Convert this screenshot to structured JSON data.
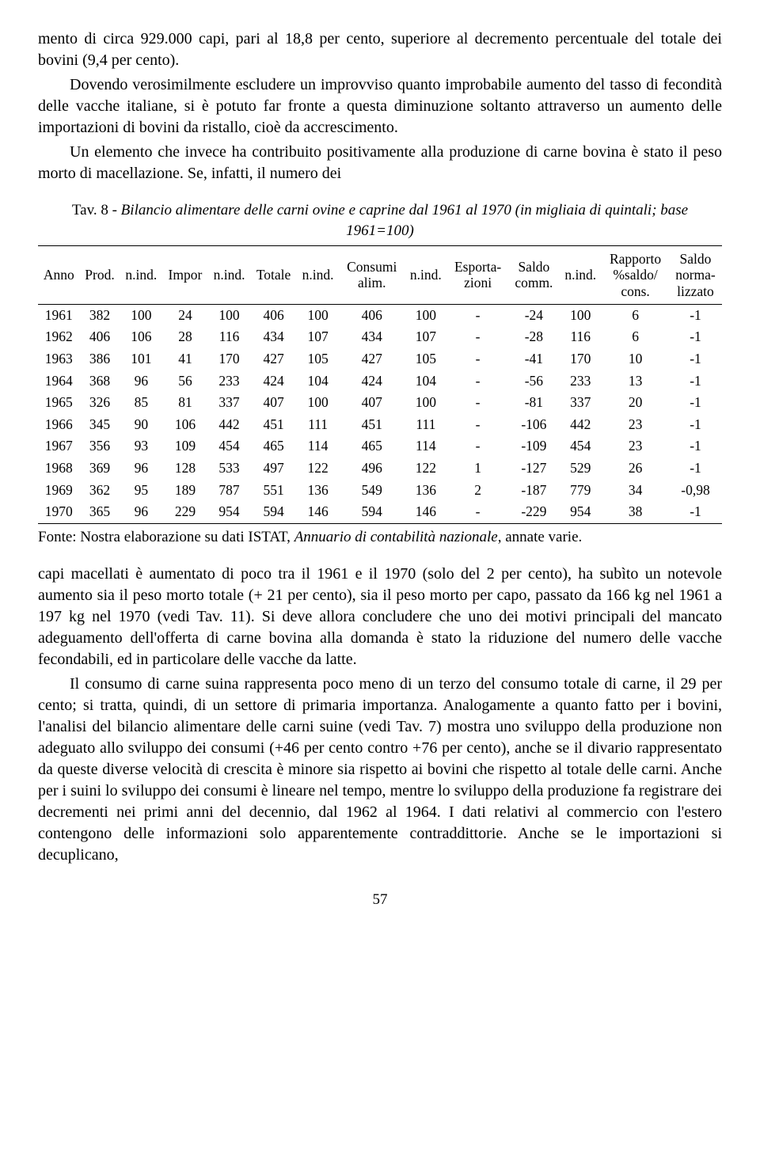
{
  "paragraphs": {
    "p1": "mento di circa 929.000 capi, pari al 18,8 per cento, superiore al decremento percentuale del totale dei bovini (9,4 per cento).",
    "p2": "Dovendo verosimilmente escludere un improvviso quanto improbabile aumento del tasso di fecondità delle vacche italiane, si è potuto far fronte a questa diminuzione soltanto attraverso un aumento delle importazioni di bovini da ristallo, cioè da accrescimento.",
    "p3": "Un elemento che invece ha contribuito positivamente alla produzione di carne bovina è stato il peso morto di macellazione. Se, infatti, il numero dei",
    "p4": "capi macellati è aumentato di poco tra il 1961 e il 1970 (solo del 2 per cento), ha subìto un notevole aumento sia il peso morto totale (+ 21 per cento), sia il peso morto per capo, passato da 166 kg nel 1961 a 197 kg nel 1970 (vedi Tav. 11). Si deve allora concludere che uno dei motivi principali del mancato adeguamento dell'offerta di carne bovina alla domanda è stato la riduzione del numero delle vacche fecondabili, ed in particolare delle vacche da latte.",
    "p5": "Il consumo di carne suina rappresenta poco meno di un terzo del consumo totale di carne, il 29 per cento; si tratta, quindi, di un settore di primaria importanza. Analogamente a quanto fatto per i bovini, l'analisi del bilancio alimentare delle carni suine (vedi Tav. 7) mostra uno sviluppo della produzione non adeguato allo sviluppo dei consumi (+46 per cento contro +76 per cento), anche se il divario rappresentato da queste diverse velocità di crescita è minore sia rispetto ai bovini che rispetto al totale delle carni. Anche per i suini lo sviluppo dei consumi è lineare nel tempo, mentre lo sviluppo della produzione fa registrare dei decrementi nei primi anni del decennio, dal 1962 al 1964. I dati relativi al commercio con l'estero contengono delle informazioni solo apparentemente contraddittorie. Anche se le importazioni si decuplicano,"
  },
  "table": {
    "caption_prefix": "Tav. 8",
    "caption_text": " - Bilancio alimentare delle carni ovine e caprine dal 1961 al 1970 (in migliaia di quintali; base 1961=100)",
    "columns": [
      "Anno",
      "Prod.",
      "n.ind.",
      "Impor",
      "n.ind.",
      "Totale",
      "n.ind.",
      "Consumi alim.",
      "n.ind.",
      "Esporta- zioni",
      "Saldo comm.",
      "n.ind.",
      "Rapporto %saldo/ cons.",
      "Saldo norma- lizzato"
    ],
    "rows": [
      [
        "1961",
        "382",
        "100",
        "24",
        "100",
        "406",
        "100",
        "406",
        "100",
        "-",
        "-24",
        "100",
        "6",
        "-1"
      ],
      [
        "1962",
        "406",
        "106",
        "28",
        "116",
        "434",
        "107",
        "434",
        "107",
        "-",
        "-28",
        "116",
        "6",
        "-1"
      ],
      [
        "1963",
        "386",
        "101",
        "41",
        "170",
        "427",
        "105",
        "427",
        "105",
        "-",
        "-41",
        "170",
        "10",
        "-1"
      ],
      [
        "1964",
        "368",
        "96",
        "56",
        "233",
        "424",
        "104",
        "424",
        "104",
        "-",
        "-56",
        "233",
        "13",
        "-1"
      ],
      [
        "1965",
        "326",
        "85",
        "81",
        "337",
        "407",
        "100",
        "407",
        "100",
        "-",
        "-81",
        "337",
        "20",
        "-1"
      ],
      [
        "1966",
        "345",
        "90",
        "106",
        "442",
        "451",
        "111",
        "451",
        "111",
        "-",
        "-106",
        "442",
        "23",
        "-1"
      ],
      [
        "1967",
        "356",
        "93",
        "109",
        "454",
        "465",
        "114",
        "465",
        "114",
        "-",
        "-109",
        "454",
        "23",
        "-1"
      ],
      [
        "1968",
        "369",
        "96",
        "128",
        "533",
        "497",
        "122",
        "496",
        "122",
        "1",
        "-127",
        "529",
        "26",
        "-1"
      ],
      [
        "1969",
        "362",
        "95",
        "189",
        "787",
        "551",
        "136",
        "549",
        "136",
        "2",
        "-187",
        "779",
        "34",
        "-0,98"
      ],
      [
        "1970",
        "365",
        "96",
        "229",
        "954",
        "594",
        "146",
        "594",
        "146",
        "-",
        "-229",
        "954",
        "38",
        "-1"
      ]
    ],
    "source_prefix": "Fonte: Nostra elaborazione su dati ISTAT, ",
    "source_italic": "Annuario di contabilità nazionale",
    "source_suffix": ", annate varie."
  },
  "page_number": "57"
}
